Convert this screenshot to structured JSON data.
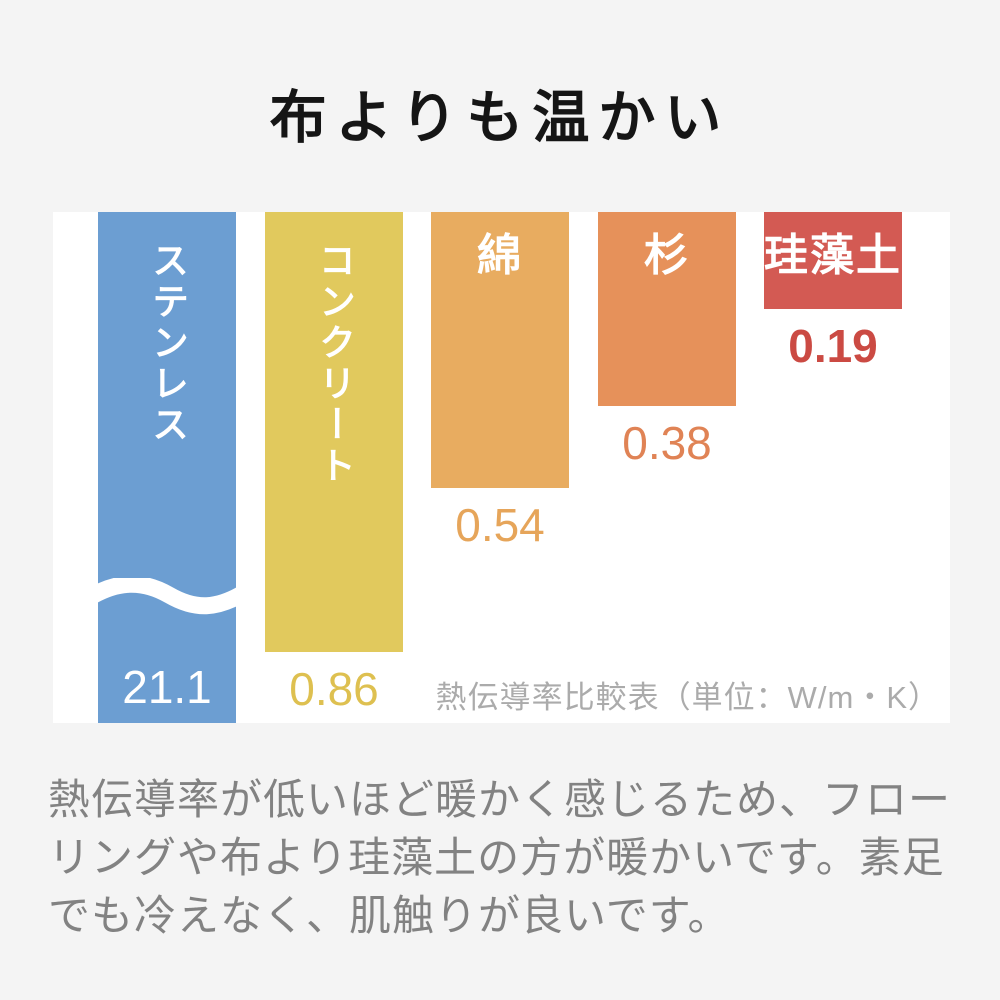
{
  "title": "布よりも温かい",
  "chart_data": {
    "type": "bar",
    "title": "布よりも温かい",
    "caption": "熱伝導率比較表（単位：W/m・K）",
    "unit": "W/m・K",
    "ylabel": "熱伝導率",
    "ylim": [
      0,
      1.0
    ],
    "grid": false,
    "legend": "none",
    "axis_break_note": "ステンレスの棒は波線で省略（21.1は軸範囲外）",
    "categories": [
      "ステンレス",
      "コンクリート",
      "綿",
      "杉",
      "珪藻土"
    ],
    "values": [
      21.1,
      0.86,
      0.54,
      0.38,
      0.19
    ],
    "bars": [
      {
        "id": "stainless",
        "label": "ステンレス",
        "value_text": "21.1",
        "value": 21.1,
        "color": "#6C9ED2",
        "value_color": "#FFFFFF",
        "label_orient": "vertical",
        "broken": true,
        "value_inside": true
      },
      {
        "id": "concrete",
        "label": "コンクリート",
        "value_text": "0.86",
        "value": 0.86,
        "color": "#E1C95D",
        "value_color": "#DEC050",
        "label_orient": "vertical"
      },
      {
        "id": "cotton",
        "label": "綿",
        "value_text": "0.54",
        "value": 0.54,
        "color": "#E8AC60",
        "value_color": "#E6A55A",
        "label_orient": "horizontal"
      },
      {
        "id": "cedar",
        "label": "杉",
        "value_text": "0.38",
        "value": 0.38,
        "color": "#E6915A",
        "value_color": "#E08355",
        "label_orient": "horizontal"
      },
      {
        "id": "diatomite",
        "label": "珪藻土",
        "value_text": "0.19",
        "value": 0.19,
        "color": "#D35A53",
        "value_color": "#CB4A43",
        "label_orient": "horizontal",
        "value_bold": true
      }
    ]
  },
  "description": {
    "lines": [
      "熱伝導率が低いほど暖かく感じるため、フロー",
      "リングや布より珪藻土の方が暖かいです。素足",
      "でも冷えなく、肌触りが良いです。"
    ]
  },
  "colors": {
    "page_background": "#F4F4F4",
    "panel_background": "#FFFFFF",
    "title_text": "#151515",
    "caption_text": "#ABABAB",
    "description_text": "#828282"
  }
}
